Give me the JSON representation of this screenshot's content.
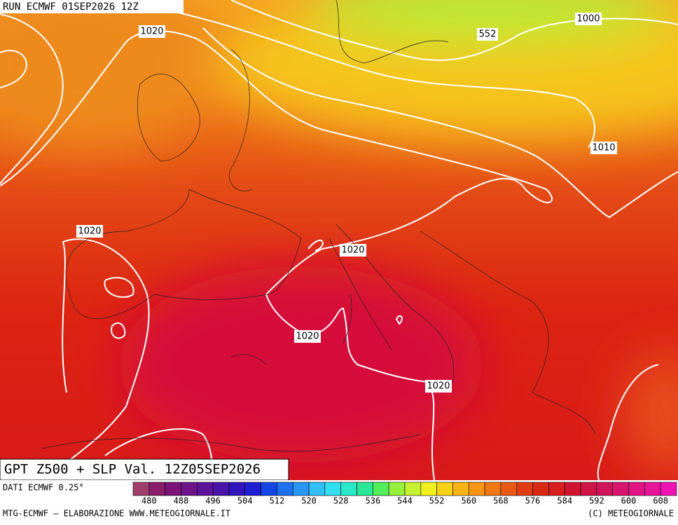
{
  "header": {
    "run": "RUN ECMWF 01SEP2026 12Z"
  },
  "contour_labels": [
    "1020",
    "552",
    "1000",
    "1010",
    "1020",
    "1020",
    "1020",
    "1020"
  ],
  "title": "GPT Z500 + SLP Val. 12Z05SEP2026",
  "source": "DATI ECMWF 0.25°",
  "colorbar": {
    "labels": [
      "480",
      "488",
      "496",
      "504",
      "512",
      "520",
      "528",
      "536",
      "544",
      "552",
      "560",
      "568",
      "576",
      "584",
      "592",
      "600",
      "608"
    ],
    "colors": [
      "#a0406a",
      "#8a1e6a",
      "#7a1478",
      "#6e1488",
      "#5e149a",
      "#4a14aa",
      "#3214bc",
      "#1e1ed2",
      "#1446e6",
      "#1e6ef0",
      "#2896f5",
      "#32bef8",
      "#32def0",
      "#28e8c8",
      "#28e896",
      "#50ee5a",
      "#96f03c",
      "#c8f032",
      "#f0f01e",
      "#f8d214",
      "#f8b414",
      "#f89614",
      "#f07814",
      "#e85a14",
      "#e03c14",
      "#d82814",
      "#d81e1e",
      "#d01432",
      "#d01446",
      "#d0145a",
      "#d8146e",
      "#e01482",
      "#e8149a",
      "#f014b4"
    ]
  },
  "footer": {
    "left": "MTG-ECMWF – ELABORAZIONE WWW.METEOGIORNALE.IT",
    "right": "(C) METEOGIORNALE"
  }
}
